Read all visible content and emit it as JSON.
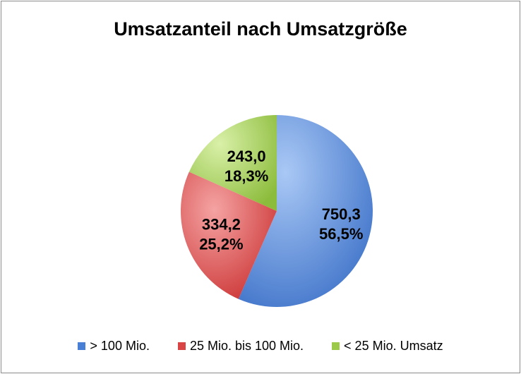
{
  "chart_data": {
    "type": "pie",
    "title": "Umsatzanteil nach Umsatzgröße",
    "slices": [
      {
        "name": "> 100 Mio.",
        "value": 750.3,
        "value_label": "750,3",
        "percent_label": "56,5%",
        "color": "#4a7fd6"
      },
      {
        "name": "25 Mio. bis 100 Mio.",
        "value": 334.2,
        "value_label": "334,2",
        "percent_label": "25,2%",
        "color": "#d94545"
      },
      {
        "name": "< 25 Mio. Umsatz",
        "value": 243.0,
        "value_label": "243,0",
        "percent_label": "18,3%",
        "color": "#9cc94a"
      }
    ],
    "legend_position": "bottom"
  }
}
